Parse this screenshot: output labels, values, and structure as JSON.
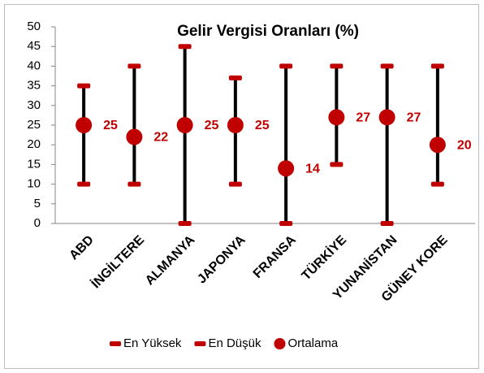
{
  "chart_data": {
    "type": "stock",
    "title": "Gelir Vergisi Oranları (%)",
    "categories": [
      "ABD",
      "İNGİLTERE",
      "ALMANYA",
      "JAPONYA",
      "FRANSA",
      "TÜRKİYE",
      "YUNANİSTAN",
      "GÜNEY KORE"
    ],
    "series": [
      {
        "name": "En Yüksek",
        "color": "#c00000",
        "marker": "dash",
        "values": [
          35,
          40,
          45,
          37,
          40,
          40,
          40,
          40
        ]
      },
      {
        "name": "En Düşük",
        "color": "#c00000",
        "marker": "dash",
        "values": [
          10,
          10,
          0,
          10,
          0,
          15,
          0,
          10
        ]
      },
      {
        "name": "Ortalama",
        "color": "#c00000",
        "marker": "circle",
        "data_labels": true,
        "values": [
          25,
          22,
          25,
          25,
          14,
          27,
          27,
          20
        ]
      }
    ],
    "high_low_lines": {
      "color": "#000000"
    },
    "ylim": [
      0,
      50
    ],
    "yticks": [
      0,
      5,
      10,
      15,
      20,
      25,
      30,
      35,
      40,
      45,
      50
    ],
    "grid": false,
    "legend": "bottom"
  }
}
